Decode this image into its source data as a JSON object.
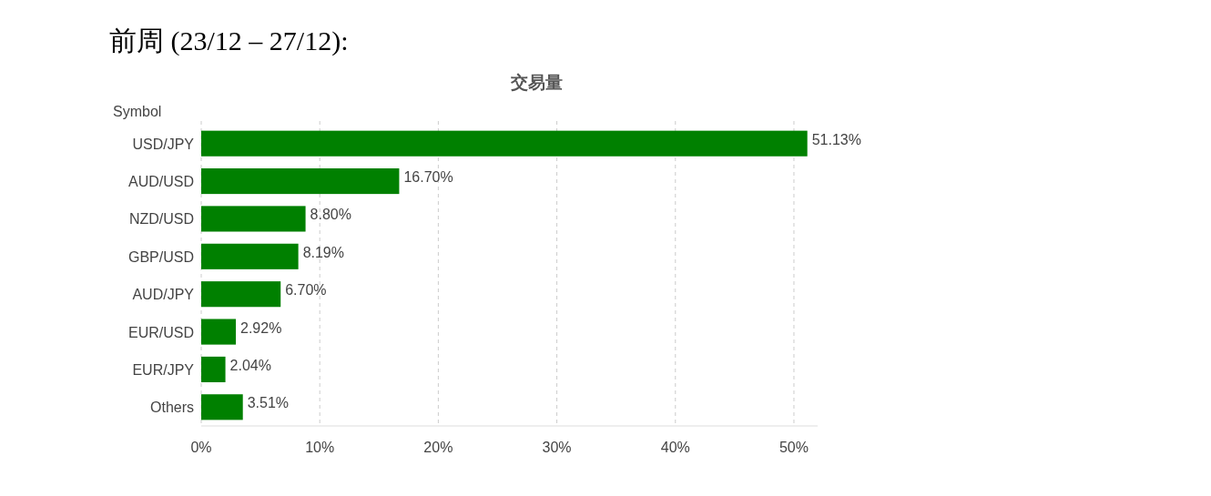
{
  "chart_data": {
    "type": "bar",
    "orientation": "horizontal",
    "title": "前周 (23/12 – 27/12):",
    "subtitle": "交易量",
    "ylabel": "Symbol",
    "categories": [
      "USD/JPY",
      "AUD/USD",
      "NZD/USD",
      "GBP/USD",
      "AUD/JPY",
      "EUR/USD",
      "EUR/JPY",
      "Others"
    ],
    "values": [
      51.13,
      16.7,
      8.8,
      8.19,
      6.7,
      2.92,
      2.04,
      3.51
    ],
    "value_labels": [
      "51.13%",
      "16.70%",
      "8.80%",
      "8.19%",
      "6.70%",
      "2.92%",
      "2.04%",
      "3.51%"
    ],
    "color": "#008000",
    "xlim": [
      0,
      52
    ],
    "xticks": [
      {
        "value": 0,
        "label": "0%"
      },
      {
        "value": 10,
        "label": "10%"
      },
      {
        "value": 20,
        "label": "20%"
      },
      {
        "value": 30,
        "label": "30%"
      },
      {
        "value": 40,
        "label": "40%"
      },
      {
        "value": 50,
        "label": "50%"
      }
    ],
    "grid": "x"
  }
}
